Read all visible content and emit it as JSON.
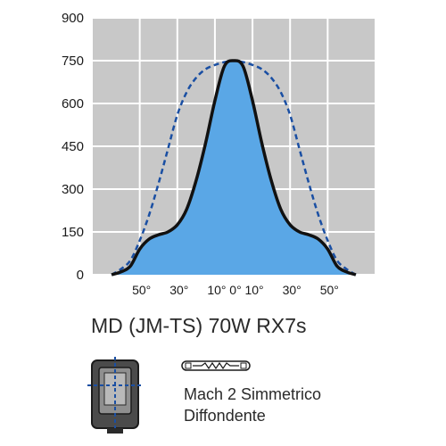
{
  "chart_data": {
    "type": "line",
    "title": "",
    "xlabel": "",
    "ylabel": "",
    "ylim": [
      0,
      900
    ],
    "xlim": [
      -75,
      75
    ],
    "yticks": [
      0,
      150,
      300,
      450,
      600,
      750,
      900
    ],
    "xticks": [
      {
        "value": -50,
        "label": "50°"
      },
      {
        "value": -30,
        "label": "30°"
      },
      {
        "value": -10,
        "label": "10°"
      },
      {
        "value": 0,
        "label": "0°"
      },
      {
        "value": 10,
        "label": "10°"
      },
      {
        "value": 30,
        "label": "30°"
      },
      {
        "value": 50,
        "label": "50°"
      }
    ],
    "grid": true,
    "background": "#c8c8c8",
    "series": [
      {
        "style": "solid-filled",
        "color": "#111111",
        "fill": "#5aa7e6",
        "x": [
          -65,
          -60,
          -55,
          -50,
          -45,
          -40,
          -35,
          -30,
          -25,
          -20,
          -15,
          -10,
          -5,
          0,
          5,
          10,
          15,
          20,
          25,
          30,
          35,
          40,
          45,
          50,
          55,
          60,
          65
        ],
        "y": [
          0,
          10,
          30,
          90,
          125,
          140,
          150,
          175,
          230,
          330,
          460,
          610,
          730,
          750,
          730,
          610,
          460,
          330,
          230,
          175,
          150,
          140,
          125,
          90,
          30,
          10,
          0
        ]
      },
      {
        "style": "dashed",
        "color": "#1a4fa3",
        "x": [
          -65,
          -60,
          -55,
          -50,
          -45,
          -40,
          -35,
          -30,
          -25,
          -20,
          -15,
          -10,
          -5,
          0,
          5,
          10,
          15,
          20,
          25,
          30,
          35,
          40,
          45,
          50,
          55,
          60,
          65
        ],
        "y": [
          0,
          20,
          50,
          120,
          210,
          320,
          440,
          560,
          640,
          690,
          720,
          735,
          745,
          750,
          745,
          735,
          720,
          690,
          640,
          560,
          440,
          320,
          210,
          120,
          50,
          20,
          0
        ]
      }
    ]
  },
  "caption": {
    "model": "MD (JM-TS) 70W RX7s",
    "line1": "Mach 2 Simmetrico",
    "line2": "Diffondente"
  }
}
